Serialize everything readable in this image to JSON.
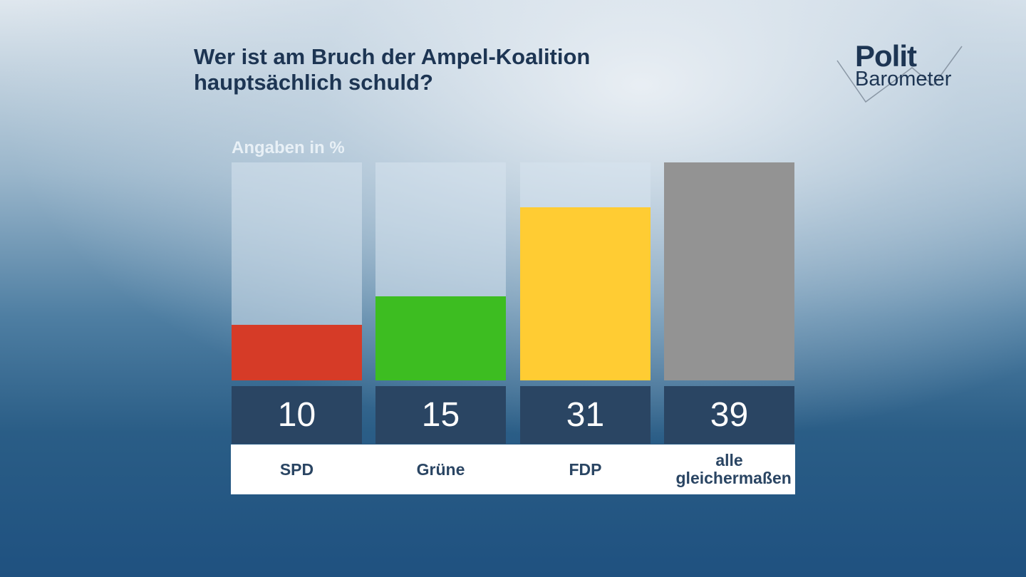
{
  "title_line1": "Wer ist am Bruch der Ampel-Koalition",
  "title_line2": "hauptsächlich schuld?",
  "logo": {
    "line1": "Polit",
    "line2": "Barometer"
  },
  "chart_data": {
    "type": "bar",
    "title": "Wer ist am Bruch der Ampel-Koalition hauptsächlich schuld?",
    "subtitle": "Angaben in %",
    "categories": [
      "SPD",
      "Grüne",
      "FDP",
      "alle gleichermaßen"
    ],
    "values": [
      10,
      15,
      31,
      39
    ],
    "value_labels": [
      "10",
      "15",
      "31",
      "39"
    ],
    "colors": [
      "#d63b27",
      "#3dbd21",
      "#ffcc33",
      "#939393"
    ],
    "ylim": [
      0,
      39
    ],
    "grid": false
  }
}
